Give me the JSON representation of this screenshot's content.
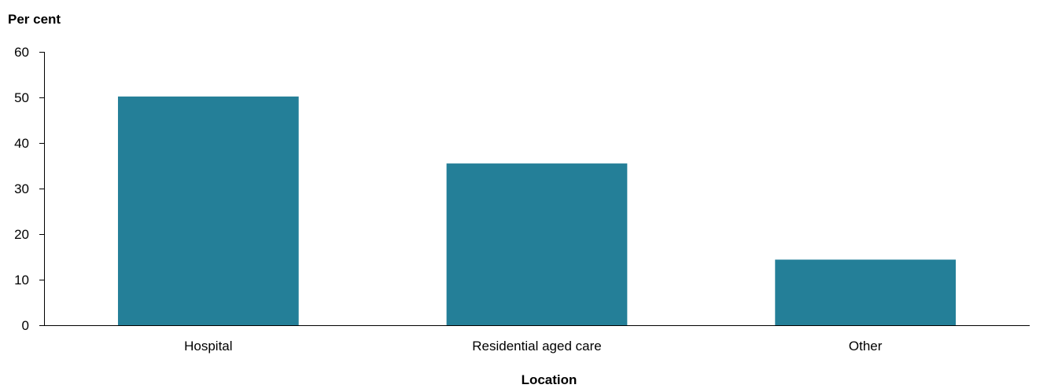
{
  "chart_data": {
    "type": "bar",
    "categories": [
      "Hospital",
      "Residential aged care",
      "Other"
    ],
    "values": [
      50.2,
      35.5,
      14.4
    ],
    "ylabel": "Per cent",
    "xlabel": "Location",
    "ylim": [
      0,
      60
    ],
    "yticks": [
      0,
      10,
      20,
      30,
      40,
      50,
      60
    ],
    "grid": false,
    "legend": "none",
    "bar_color": "#247f98"
  }
}
